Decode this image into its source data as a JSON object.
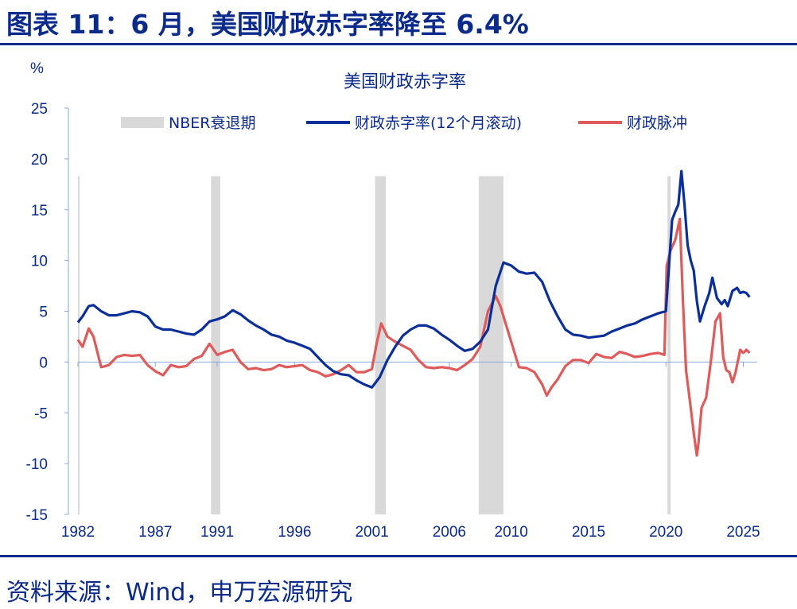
{
  "header": {
    "title": "图表 11：6 月，美国财政赤字率降至 6.4%"
  },
  "footer": {
    "source": "资料来源：Wind，申万宏源研究"
  },
  "colors": {
    "brand": "#0a2a8c",
    "deficit": "#0b2f9a",
    "impulse": "#e05a5a",
    "recession": "#d9d9d9"
  },
  "chart_data": {
    "type": "line",
    "title": "美国财政赤字率",
    "ylabel": "%",
    "xlabel": "",
    "ylim": [
      -15,
      25
    ],
    "xlim": [
      1982.0,
      2025.9
    ],
    "y_ticks": [
      "25",
      "20",
      "15",
      "10",
      "5",
      "0",
      "-5",
      "-10",
      "-15"
    ],
    "x_ticks": [
      "1982",
      "1987",
      "1991",
      "1996",
      "2001",
      "2006",
      "2010",
      "2015",
      "2020",
      "2025"
    ],
    "legend_position": "top",
    "recessions": {
      "name": "NBER衰退期",
      "periods": [
        [
          1982.0,
          1982.1
        ],
        [
          1990.6,
          1991.2
        ],
        [
          2001.2,
          2001.9
        ],
        [
          2007.9,
          2009.5
        ],
        [
          2020.1,
          2020.3
        ]
      ]
    },
    "series": [
      {
        "name": "财政赤字率(12个月滚动)",
        "x": [
          1982.0,
          1982.3,
          1982.7,
          1983.0,
          1983.5,
          1984.0,
          1984.5,
          1985.0,
          1985.5,
          1986.0,
          1986.5,
          1987.0,
          1987.5,
          1988.0,
          1988.5,
          1989.0,
          1989.5,
          1990.0,
          1990.5,
          1991.0,
          1991.5,
          1992.0,
          1992.5,
          1993.0,
          1993.5,
          1994.0,
          1994.5,
          1995.0,
          1995.5,
          1996.0,
          1996.5,
          1997.0,
          1997.5,
          1998.0,
          1998.5,
          1999.0,
          1999.5,
          2000.0,
          2000.5,
          2001.0,
          2001.5,
          2002.0,
          2002.5,
          2003.0,
          2003.5,
          2004.0,
          2004.5,
          2005.0,
          2005.5,
          2006.0,
          2006.5,
          2007.0,
          2007.5,
          2008.0,
          2008.5,
          2009.0,
          2009.5,
          2010.0,
          2010.5,
          2011.0,
          2011.5,
          2012.0,
          2012.5,
          2013.0,
          2013.5,
          2014.0,
          2014.5,
          2015.0,
          2015.5,
          2016.0,
          2016.5,
          2017.0,
          2017.5,
          2018.0,
          2018.5,
          2019.0,
          2019.5,
          2020.0,
          2020.2,
          2020.4,
          2020.6,
          2020.8,
          2021.0,
          2021.2,
          2021.4,
          2021.6,
          2021.8,
          2022.0,
          2022.2,
          2022.5,
          2022.8,
          2023.0,
          2023.3,
          2023.6,
          2023.8,
          2024.0,
          2024.3,
          2024.6,
          2024.8,
          2025.0,
          2025.2,
          2025.4
        ],
        "values": [
          3.9,
          4.5,
          5.5,
          5.6,
          5.0,
          4.6,
          4.6,
          4.8,
          5.0,
          4.9,
          4.5,
          3.5,
          3.2,
          3.2,
          3.0,
          2.8,
          2.7,
          3.2,
          4.0,
          4.2,
          4.5,
          5.1,
          4.7,
          4.1,
          3.6,
          3.2,
          2.7,
          2.5,
          2.1,
          1.9,
          1.6,
          1.3,
          0.5,
          -0.3,
          -0.9,
          -1.2,
          -1.3,
          -1.8,
          -2.2,
          -2.5,
          -1.5,
          0.2,
          1.5,
          2.6,
          3.2,
          3.6,
          3.6,
          3.3,
          2.7,
          2.2,
          1.6,
          1.1,
          1.3,
          2.0,
          3.2,
          7.5,
          9.8,
          9.5,
          8.9,
          8.7,
          8.8,
          7.9,
          6.0,
          4.5,
          3.2,
          2.7,
          2.6,
          2.4,
          2.5,
          2.6,
          3.0,
          3.3,
          3.6,
          3.8,
          4.2,
          4.5,
          4.8,
          5.0,
          9.5,
          14.0,
          14.8,
          15.5,
          18.8,
          15.5,
          11.5,
          10.0,
          9.0,
          6.0,
          4.0,
          5.5,
          6.8,
          8.3,
          6.3,
          5.7,
          6.1,
          5.5,
          7.0,
          7.3,
          6.8,
          6.9,
          6.8,
          6.4
        ]
      },
      {
        "name": "财政脉冲",
        "x": [
          1982.0,
          1982.3,
          1982.7,
          1983.0,
          1983.5,
          1984.0,
          1984.5,
          1985.0,
          1985.5,
          1986.0,
          1986.5,
          1987.0,
          1987.5,
          1988.0,
          1988.5,
          1989.0,
          1989.5,
          1990.0,
          1990.5,
          1991.0,
          1991.5,
          1992.0,
          1992.5,
          1993.0,
          1993.5,
          1994.0,
          1994.5,
          1995.0,
          1995.5,
          1996.0,
          1996.5,
          1997.0,
          1997.5,
          1998.0,
          1998.5,
          1999.0,
          1999.5,
          2000.0,
          2000.5,
          2001.0,
          2001.3,
          2001.6,
          2002.0,
          2002.5,
          2003.0,
          2003.5,
          2004.0,
          2004.5,
          2005.0,
          2005.5,
          2006.0,
          2006.5,
          2007.0,
          2007.5,
          2008.0,
          2008.5,
          2009.0,
          2009.3,
          2009.6,
          2010.0,
          2010.5,
          2011.0,
          2011.5,
          2012.0,
          2012.3,
          2012.6,
          2013.0,
          2013.5,
          2014.0,
          2014.5,
          2015.0,
          2015.5,
          2016.0,
          2016.5,
          2017.0,
          2017.5,
          2018.0,
          2018.5,
          2019.0,
          2019.5,
          2019.9,
          2020.05,
          2020.3,
          2020.6,
          2020.9,
          2021.1,
          2021.3,
          2021.6,
          2021.8,
          2022.0,
          2022.1,
          2022.3,
          2022.6,
          2022.9,
          2023.2,
          2023.5,
          2023.7,
          2023.9,
          2024.1,
          2024.3,
          2024.5,
          2024.8,
          2025.0,
          2025.2,
          2025.4
        ],
        "values": [
          2.2,
          1.5,
          3.3,
          2.5,
          -0.5,
          -0.3,
          0.5,
          0.7,
          0.6,
          0.7,
          -0.3,
          -0.9,
          -1.3,
          -0.3,
          -0.5,
          -0.4,
          0.3,
          0.6,
          1.8,
          0.7,
          1.0,
          1.2,
          0.0,
          -0.7,
          -0.6,
          -0.8,
          -0.7,
          -0.3,
          -0.5,
          -0.4,
          -0.3,
          -0.8,
          -1.0,
          -1.4,
          -1.2,
          -0.8,
          -0.3,
          -1.0,
          -1.0,
          -0.7,
          1.8,
          3.8,
          2.5,
          2.0,
          1.6,
          1.2,
          0.2,
          -0.5,
          -0.6,
          -0.5,
          -0.6,
          -0.8,
          -0.3,
          0.3,
          1.5,
          5.0,
          6.5,
          5.5,
          4.0,
          2.0,
          -0.5,
          -0.6,
          -1.0,
          -2.2,
          -3.3,
          -2.5,
          -1.7,
          -0.4,
          0.2,
          0.2,
          -0.1,
          0.8,
          0.5,
          0.4,
          1.0,
          0.8,
          0.5,
          0.6,
          0.8,
          0.9,
          0.7,
          9.5,
          11.0,
          12.0,
          14.1,
          6.0,
          -0.8,
          -4.5,
          -7.0,
          -9.2,
          -8.0,
          -4.5,
          -3.5,
          0.0,
          4.0,
          4.8,
          0.5,
          -0.8,
          -1.0,
          -2.0,
          -1.0,
          1.2,
          0.9,
          1.2,
          0.9
        ]
      }
    ]
  }
}
